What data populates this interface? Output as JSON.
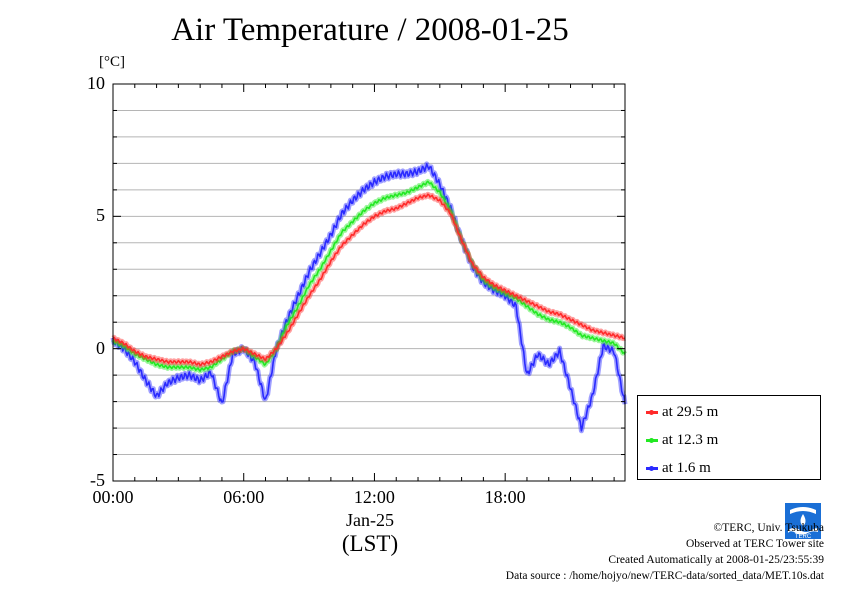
{
  "title": "Air Temperature / 2008-01-25",
  "unit_label": "[°C]",
  "x_date_label": "Jan-25",
  "x_unit_label": "(LST)",
  "credits": [
    "©TERC, Univ. Tsukuba",
    "Observed at TERC Tower site",
    "Created Automatically at 2008-01-25/23:55:39",
    "Data source : /home/hojyo/new/TERC-data/sorted_data/MET.10s.dat"
  ],
  "logo": {
    "text": "TERC",
    "color": "#1a6fd6"
  },
  "colors": {
    "red": "#ff2a2a",
    "green": "#22e822",
    "blue": "#2a2aff"
  },
  "chart_data": {
    "type": "line",
    "title": "Air Temperature / 2008-01-25",
    "ylabel": "[°C]",
    "xlabel": "(LST)",
    "ylim": [
      -5,
      10
    ],
    "xlim": [
      0,
      23.5
    ],
    "y_ticks": [
      "10",
      "5",
      "0",
      "-5"
    ],
    "x_ticks": [
      "00:00",
      "06:00",
      "12:00",
      "18:00"
    ],
    "x_tick_hours": [
      0,
      6,
      12,
      18
    ],
    "grid": true,
    "legend_position": "bottom-right, outside plot",
    "series": [
      {
        "name": "at 29.5 m",
        "color": "#ff2a2a",
        "x": [
          0,
          0.5,
          1,
          1.5,
          2,
          2.5,
          3,
          3.5,
          4,
          4.5,
          5,
          5.5,
          6,
          6.5,
          7,
          7.5,
          8,
          8.5,
          9,
          9.5,
          10,
          10.5,
          11,
          11.5,
          12,
          12.5,
          13,
          13.5,
          14,
          14.5,
          15,
          15.5,
          16,
          16.5,
          17,
          17.5,
          18,
          18.5,
          19,
          19.5,
          20,
          20.5,
          21,
          21.5,
          22,
          22.5,
          23,
          23.5
        ],
        "values": [
          0.4,
          0.2,
          -0.1,
          -0.3,
          -0.4,
          -0.5,
          -0.5,
          -0.5,
          -0.6,
          -0.5,
          -0.3,
          -0.1,
          0.0,
          -0.2,
          -0.4,
          0.0,
          0.6,
          1.3,
          2.0,
          2.6,
          3.3,
          3.9,
          4.3,
          4.7,
          5.0,
          5.2,
          5.3,
          5.5,
          5.7,
          5.8,
          5.6,
          5.1,
          4.1,
          3.2,
          2.7,
          2.4,
          2.2,
          2.0,
          1.8,
          1.6,
          1.4,
          1.3,
          1.1,
          0.9,
          0.7,
          0.6,
          0.5,
          0.4
        ]
      },
      {
        "name": "at 12.3 m",
        "color": "#22e822",
        "x": [
          0,
          0.5,
          1,
          1.5,
          2,
          2.5,
          3,
          3.5,
          4,
          4.5,
          5,
          5.5,
          6,
          6.5,
          7,
          7.5,
          8,
          8.5,
          9,
          9.5,
          10,
          10.5,
          11,
          11.5,
          12,
          12.5,
          13,
          13.5,
          14,
          14.5,
          15,
          15.5,
          16,
          16.5,
          17,
          17.5,
          18,
          18.5,
          19,
          19.5,
          20,
          20.5,
          21,
          21.5,
          22,
          22.5,
          23,
          23.5
        ],
        "values": [
          0.3,
          0.1,
          -0.2,
          -0.4,
          -0.6,
          -0.7,
          -0.7,
          -0.7,
          -0.8,
          -0.7,
          -0.4,
          -0.1,
          0.0,
          -0.3,
          -0.6,
          0.0,
          0.9,
          1.6,
          2.4,
          3.0,
          3.7,
          4.4,
          4.8,
          5.2,
          5.5,
          5.7,
          5.8,
          5.9,
          6.1,
          6.3,
          5.9,
          5.2,
          4.1,
          3.2,
          2.6,
          2.3,
          2.1,
          1.9,
          1.6,
          1.3,
          1.1,
          1.0,
          0.8,
          0.5,
          0.4,
          0.3,
          0.2,
          -0.2
        ]
      },
      {
        "name": "at 1.6 m",
        "color": "#2a2aff",
        "x": [
          0,
          0.5,
          1,
          1.5,
          2,
          2.5,
          3,
          3.5,
          4,
          4.5,
          5,
          5.5,
          6,
          6.5,
          7,
          7.5,
          8,
          8.5,
          9,
          9.5,
          10,
          10.5,
          11,
          11.5,
          12,
          12.5,
          13,
          13.5,
          14,
          14.5,
          15,
          15.5,
          16,
          16.5,
          17,
          17.5,
          18,
          18.5,
          19,
          19.5,
          20,
          20.5,
          21,
          21.5,
          22,
          22.5,
          23,
          23.5
        ],
        "values": [
          0.3,
          0.0,
          -0.5,
          -1.2,
          -1.8,
          -1.3,
          -1.1,
          -1.0,
          -1.2,
          -0.9,
          -2.1,
          -0.2,
          0.0,
          -0.5,
          -2.0,
          0.0,
          1.1,
          2.0,
          2.9,
          3.6,
          4.3,
          5.1,
          5.6,
          6.0,
          6.3,
          6.5,
          6.6,
          6.6,
          6.7,
          6.9,
          6.2,
          5.3,
          4.1,
          3.1,
          2.5,
          2.2,
          2.0,
          1.6,
          -1.0,
          -0.2,
          -0.6,
          -0.1,
          -1.5,
          -3.0,
          -1.8,
          0.1,
          -0.1,
          -2.1
        ]
      }
    ]
  }
}
